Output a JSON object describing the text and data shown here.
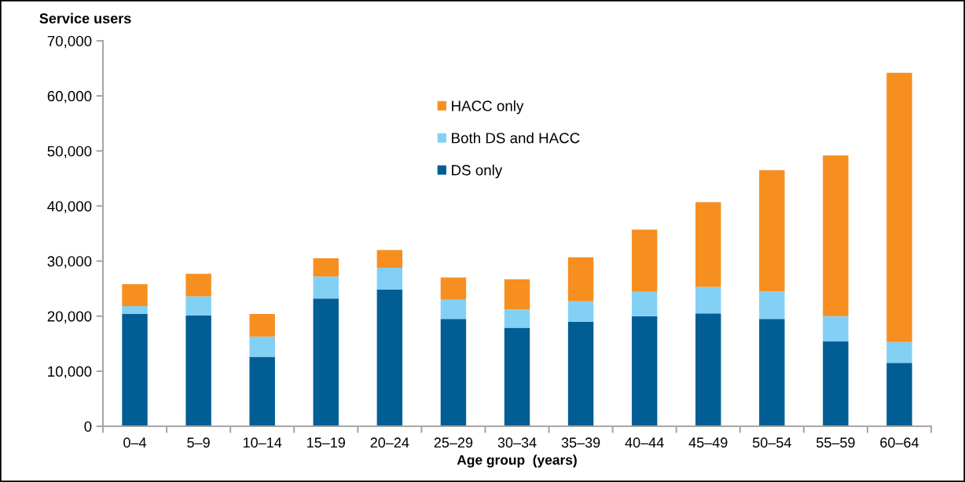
{
  "chart_data": {
    "type": "bar",
    "stacked": true,
    "xlabel": "Age group  (years)",
    "ylabel": "Service users",
    "categories": [
      "0–4",
      "5–9",
      "10–14",
      "15–19",
      "20–24",
      "25–29",
      "30–34",
      "35–39",
      "40–44",
      "45–49",
      "50–54",
      "55–59",
      "60–64"
    ],
    "series": [
      {
        "name": "DS only",
        "color": "#005e95",
        "values": [
          20400,
          20100,
          12600,
          23200,
          24800,
          19500,
          17900,
          19000,
          20000,
          20500,
          19500,
          15400,
          11500
        ]
      },
      {
        "name": "Both DS and HACC",
        "color": "#83d0f5",
        "values": [
          1400,
          3500,
          3700,
          4000,
          4000,
          3500,
          3300,
          3700,
          4400,
          4800,
          5000,
          4600,
          3800
        ]
      },
      {
        "name": "HACC only",
        "color": "#f68f1f",
        "values": [
          4000,
          4100,
          4100,
          3300,
          3200,
          4000,
          5500,
          8000,
          11300,
          15400,
          22000,
          29200,
          48900
        ]
      }
    ],
    "ylim": [
      0,
      70000
    ],
    "yticks": [
      0,
      {
        "value": 10000,
        "label": "10,000"
      },
      {
        "value": 20000,
        "label": "20,000"
      },
      {
        "value": 30000,
        "label": "30,000"
      },
      {
        "value": 40000,
        "label": "40,000"
      },
      {
        "value": 50000,
        "label": "50,000"
      },
      {
        "value": 60000,
        "label": "60,000"
      },
      {
        "value": 70000,
        "label": "70,000"
      }
    ],
    "legend": "top",
    "grid": false
  }
}
